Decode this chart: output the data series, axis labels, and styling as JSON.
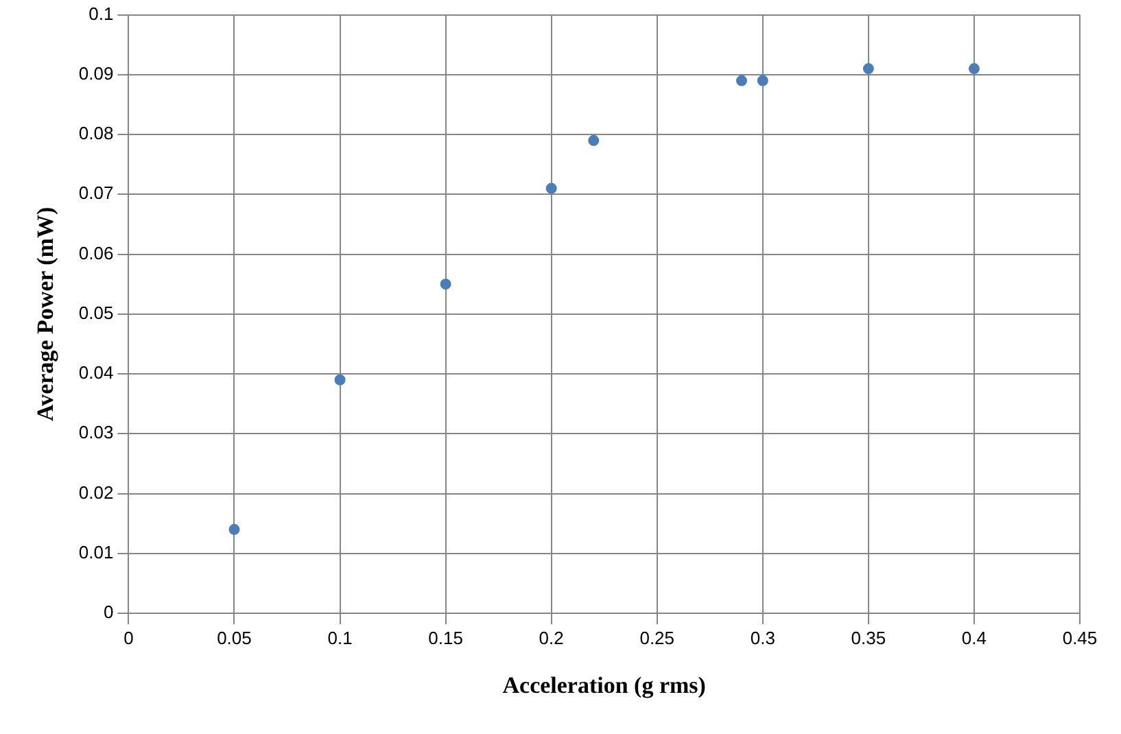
{
  "chart_data": {
    "type": "scatter",
    "xlabel": "Acceleration (g rms)",
    "ylabel": "Average Power (mW)",
    "x": [
      0.05,
      0.1,
      0.15,
      0.2,
      0.22,
      0.29,
      0.3,
      0.35,
      0.4
    ],
    "series": [
      {
        "color": "#4a7ebb",
        "values": [
          0.014,
          0.039,
          0.055,
          0.071,
          0.079,
          0.089,
          0.089,
          0.091,
          0.091
        ]
      }
    ],
    "xlim": [
      0,
      0.45
    ],
    "xticks": [
      0,
      0.05,
      0.1,
      0.15,
      0.2,
      0.25,
      0.3,
      0.35,
      0.4,
      0.45
    ],
    "ylim": [
      0,
      0.1
    ],
    "yticks": [
      0,
      0.01,
      0.02,
      0.03,
      0.04,
      0.05,
      0.06,
      0.07,
      0.08,
      0.09,
      0.1
    ],
    "grid": true,
    "legend": false,
    "marker": "circle"
  }
}
